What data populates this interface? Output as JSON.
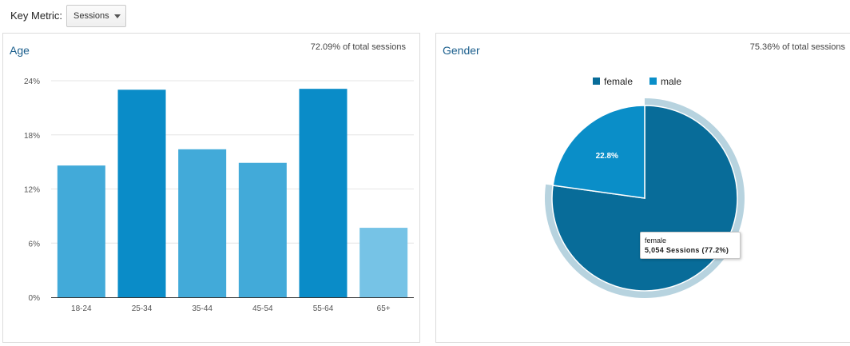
{
  "key_metric": {
    "label": "Key Metric:",
    "selected": "Sessions"
  },
  "panels": [
    {
      "title": "Age",
      "pct_text": "72.09% of total sessions"
    },
    {
      "title": "Gender",
      "pct_text": "75.36% of total sessions"
    }
  ],
  "colors": {
    "bar_dark": "#0a8cc8",
    "bar_medium": "#42aad9",
    "bar_light": "#76c3e6",
    "female": "#086c99",
    "male": "#0a8ec8",
    "pie_halo": "#b7d3df"
  },
  "chart_data": [
    {
      "type": "bar",
      "title": "Age",
      "categories": [
        "18-24",
        "25-34",
        "35-44",
        "45-54",
        "55-64",
        "65+"
      ],
      "values": [
        14.6,
        23.0,
        16.4,
        14.9,
        23.1,
        7.7
      ],
      "yticks": [
        "0%",
        "6%",
        "12%",
        "18%",
        "24%"
      ],
      "ylim": [
        0,
        24
      ],
      "grid": true
    },
    {
      "type": "pie",
      "title": "Gender",
      "labels": [
        "female",
        "male"
      ],
      "values": [
        77.2,
        22.8
      ],
      "slice_labels": [
        "",
        "22.8%"
      ],
      "legend_position": "top",
      "highlighted": "female",
      "tooltip": {
        "label": "female",
        "value_text": "5,054 Sessions (77.2%)"
      }
    }
  ]
}
